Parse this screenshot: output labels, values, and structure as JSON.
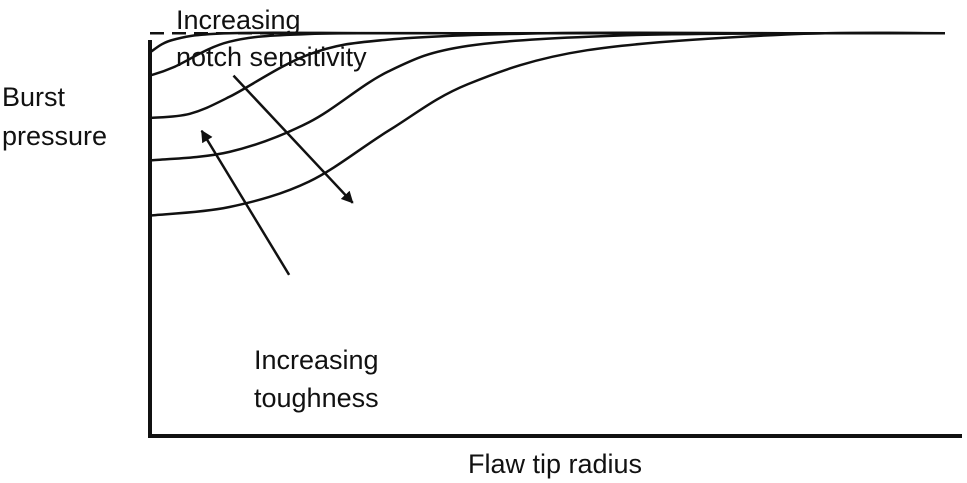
{
  "chart_data": {
    "type": "line",
    "title": "",
    "xlabel": "Flaw tip radius",
    "ylabel_lines": [
      "Burst",
      "pressure"
    ],
    "xlim": [
      0,
      1
    ],
    "ylim": [
      0,
      1
    ],
    "grid": false,
    "reference_line": {
      "style": "dashed",
      "y": 0.95
    },
    "series": [
      {
        "x": [
          0,
          0.03,
          0.1,
          0.3,
          0.6,
          1.0
        ],
        "y": [
          0.905,
          0.935,
          0.95,
          0.95,
          0.95,
          0.95
        ]
      },
      {
        "x": [
          0,
          0.03,
          0.1,
          0.2,
          0.4,
          0.7,
          1.0
        ],
        "y": [
          0.85,
          0.87,
          0.93,
          0.948,
          0.95,
          0.95,
          0.95
        ]
      },
      {
        "x": [
          0,
          0.05,
          0.1,
          0.2,
          0.3,
          0.5,
          0.8,
          1.0
        ],
        "y": [
          0.75,
          0.76,
          0.8,
          0.9,
          0.935,
          0.95,
          0.95,
          0.95
        ]
      },
      {
        "x": [
          0,
          0.1,
          0.2,
          0.3,
          0.4,
          0.6,
          0.85,
          1.0
        ],
        "y": [
          0.65,
          0.67,
          0.74,
          0.86,
          0.92,
          0.945,
          0.95,
          0.95
        ]
      },
      {
        "x": [
          0,
          0.1,
          0.2,
          0.3,
          0.4,
          0.55,
          0.8,
          1.0
        ],
        "y": [
          0.52,
          0.54,
          0.6,
          0.72,
          0.83,
          0.91,
          0.947,
          0.95
        ]
      }
    ],
    "annotations": [
      {
        "lines": [
          "Increasing",
          "notch sensitivity"
        ],
        "arrow_from": [
          0.105,
          0.85
        ],
        "arrow_to": [
          0.255,
          0.55
        ],
        "arrowhead": "end"
      },
      {
        "lines": [
          "Increasing",
          "toughness"
        ],
        "arrow_from": [
          0.175,
          0.38
        ],
        "arrow_to": [
          0.065,
          0.72
        ],
        "arrowhead": "end"
      }
    ]
  }
}
